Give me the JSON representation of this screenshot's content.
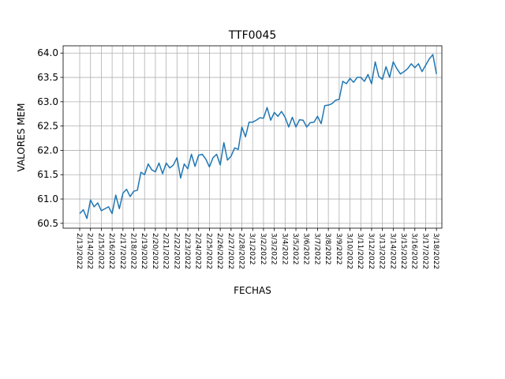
{
  "chart_data": {
    "type": "line",
    "title": "TTF0045",
    "x_label": "FECHAS",
    "y_label": "VALORES MEM",
    "categories": [
      "2/13/2022",
      null,
      null,
      "2/14/2022",
      null,
      null,
      "2/15/2022",
      null,
      null,
      "2/16/2022",
      null,
      null,
      "2/17/2022",
      null,
      null,
      "2/18/2022",
      null,
      null,
      "2/19/2022",
      null,
      null,
      "2/20/2022",
      null,
      null,
      "2/21/2022",
      null,
      null,
      "2/22/2022",
      null,
      null,
      "2/23/2022",
      null,
      null,
      "2/24/2022",
      null,
      null,
      "2/25/2022",
      null,
      null,
      "2/26/2022",
      null,
      null,
      "2/27/2022",
      null,
      null,
      "2/28/2022",
      null,
      null,
      "3/1/2022",
      null,
      null,
      "3/2/2022",
      null,
      null,
      "3/3/2022",
      null,
      null,
      "3/4/2022",
      null,
      null,
      "3/5/2022",
      null,
      null,
      "3/6/2022",
      null,
      null,
      "3/7/2022",
      null,
      null,
      "3/8/2022",
      null,
      null,
      "3/9/2022",
      null,
      null,
      "3/10/2022",
      null,
      null,
      "3/11/2022",
      null,
      null,
      "3/12/2022",
      null,
      null,
      "3/13/2022",
      null,
      null,
      "3/14/2022",
      null,
      null,
      "3/15/2022",
      null,
      null,
      "3/16/2022",
      null,
      null,
      "3/17/2022",
      null,
      null,
      "3/18/2022"
    ],
    "series": [
      {
        "name": "TTF0045",
        "color": "#1f77b4",
        "values": [
          60.7,
          60.78,
          60.6,
          60.98,
          60.84,
          60.92,
          60.76,
          60.8,
          60.84,
          60.7,
          61.08,
          60.8,
          61.12,
          61.2,
          61.05,
          61.16,
          61.18,
          61.55,
          61.5,
          61.72,
          61.6,
          61.56,
          61.74,
          61.52,
          61.74,
          61.64,
          61.7,
          61.85,
          61.43,
          61.72,
          61.62,
          61.92,
          61.67,
          61.9,
          61.92,
          61.82,
          61.66,
          61.85,
          61.92,
          61.7,
          62.16,
          61.8,
          61.88,
          62.05,
          62.02,
          62.48,
          62.28,
          62.58,
          62.58,
          62.62,
          62.67,
          62.66,
          62.88,
          62.62,
          62.78,
          62.7,
          62.8,
          62.68,
          62.48,
          62.68,
          62.48,
          62.63,
          62.62,
          62.48,
          62.57,
          62.58,
          62.7,
          62.55,
          62.92,
          62.93,
          62.96,
          63.03,
          63.05,
          63.42,
          63.37,
          63.48,
          63.4,
          63.5,
          63.5,
          63.42,
          63.56,
          63.37,
          63.82,
          63.52,
          63.46,
          63.72,
          63.5,
          63.82,
          63.68,
          63.57,
          63.62,
          63.68,
          63.78,
          63.7,
          63.78,
          63.62,
          63.75,
          63.88,
          63.97,
          63.57
        ]
      }
    ],
    "xlim": [
      -4.6,
      100.5
    ],
    "ylim": [
      60.4,
      64.15
    ],
    "yticks": [
      60.5,
      {
        "value": 61,
        "label": "61.0"
      },
      61.5,
      {
        "value": 62,
        "label": "62.0"
      },
      62.5,
      {
        "value": 63,
        "label": "63.0"
      },
      63.5,
      {
        "value": 64,
        "label": "64.0"
      }
    ],
    "grid": true
  }
}
